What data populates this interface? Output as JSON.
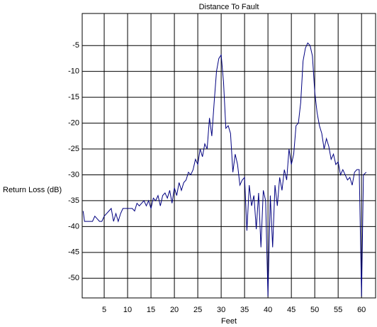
{
  "chart_data": {
    "type": "line",
    "title": "Distance To Fault",
    "x_label": "Feet",
    "y_label": "Return Loss (dB)",
    "x": [
      0.5,
      0.8,
      1.5,
      2.5,
      3,
      3.5,
      4,
      4.5,
      5,
      5.5,
      6,
      6.5,
      7,
      7.5,
      8,
      8.5,
      9,
      10,
      11,
      11.5,
      12,
      12.5,
      13,
      13.5,
      14,
      14.5,
      15,
      15.5,
      16,
      16.5,
      17,
      17.5,
      18,
      18.5,
      19,
      19.5,
      20,
      20.5,
      21,
      21.5,
      22,
      22.5,
      23,
      23.5,
      24,
      24.5,
      25,
      25.5,
      26,
      26.5,
      27,
      27.5,
      28,
      28.5,
      29,
      29.5,
      30,
      30.5,
      31,
      31.5,
      32,
      32.5,
      33,
      33.5,
      34,
      34.5,
      35,
      35.5,
      36,
      36.5,
      37,
      37.5,
      38,
      38.5,
      39,
      39.5,
      40,
      40.5,
      41,
      41.5,
      42,
      42.5,
      43,
      43.5,
      44,
      44.5,
      45,
      45.5,
      46,
      46.5,
      47,
      47.5,
      48,
      48.5,
      49,
      49.5,
      50,
      50.5,
      51,
      51.5,
      52,
      52.5,
      53,
      53.5,
      54,
      54.5,
      55,
      55.5,
      56,
      56.5,
      57,
      57.5,
      58,
      58.5,
      59,
      59.5,
      60,
      60.4,
      61
    ],
    "series": [
      {
        "name": "Return Loss",
        "color": "#000080",
        "values": [
          -37,
          -39,
          -39,
          -39,
          -38,
          -38.5,
          -39,
          -39,
          -38,
          -37.5,
          -37,
          -36.5,
          -39,
          -37.5,
          -39,
          -37.5,
          -36.5,
          -36.5,
          -36.5,
          -37,
          -35.5,
          -36,
          -35.5,
          -35,
          -36,
          -35,
          -36.5,
          -34.5,
          -35,
          -34,
          -36,
          -34,
          -33.5,
          -34.5,
          -33,
          -35.5,
          -32.5,
          -34,
          -31.5,
          -33,
          -31.5,
          -31,
          -29.5,
          -30,
          -29,
          -27,
          -28,
          -25,
          -26.5,
          -24,
          -25,
          -19,
          -22.5,
          -16,
          -10,
          -7.5,
          -6.8,
          -12,
          -21,
          -20.5,
          -22,
          -29.5,
          -26,
          -28,
          -32,
          -31,
          -30.5,
          -40.8,
          -32,
          -36,
          -34,
          -40.5,
          -33.5,
          -44,
          -33,
          -35,
          -53.5,
          -34,
          -44,
          -32,
          -36,
          -30.5,
          -33,
          -29,
          -31,
          -25,
          -28,
          -26,
          -20.5,
          -20,
          -16,
          -8,
          -5.5,
          -4.5,
          -5,
          -7,
          -14,
          -18,
          -20.5,
          -22,
          -25,
          -23,
          -24.5,
          -27,
          -26,
          -28,
          -27.5,
          -30,
          -29,
          -30,
          -31,
          -30.5,
          -32,
          -29.5,
          -29,
          -29,
          -53.5,
          -30,
          -29.5
        ]
      }
    ],
    "xlim": [
      0.3,
      63
    ],
    "ylim": [
      -53.8,
      1.2
    ],
    "xticks": [
      5,
      10,
      15,
      20,
      25,
      30,
      35,
      40,
      45,
      50,
      55,
      60
    ],
    "yticks": [
      -5,
      -10,
      -15,
      -20,
      -25,
      -30,
      -35,
      -40,
      -45,
      -50
    ],
    "grid": true
  }
}
